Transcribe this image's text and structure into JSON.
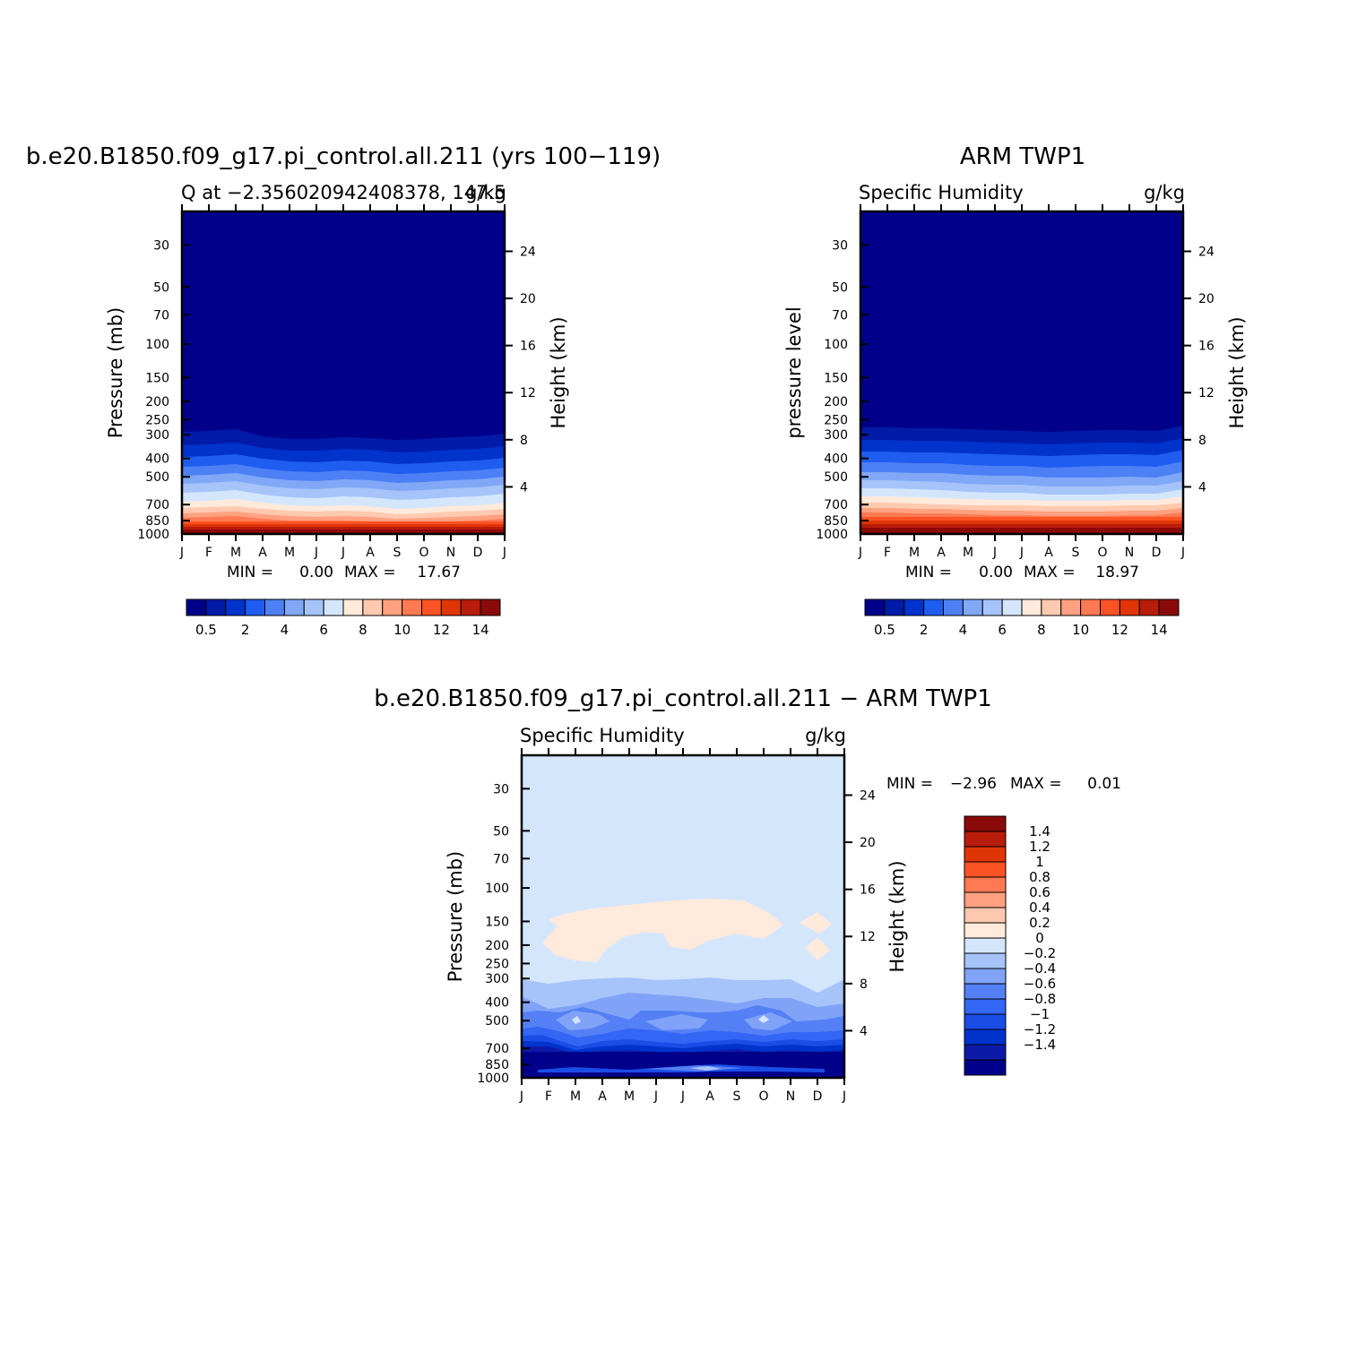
{
  "colors": {
    "model_obs_levels": [
      "#00008a",
      "#001ba8",
      "#0033cc",
      "#1f5cf0",
      "#4d80f5",
      "#80a8f7",
      "#a6c4fa",
      "#d4e6fc",
      "#ffeadb",
      "#ffc9b0",
      "#ffa180",
      "#ff7a52",
      "#fc5224",
      "#e03505",
      "#b81c0a",
      "#8a0a0a"
    ],
    "diff_levels": [
      "#00008a",
      "#0d1aa8",
      "#0033cc",
      "#1a4de6",
      "#3366f5",
      "#5580f5",
      "#80a3f7",
      "#a6c4fa",
      "#d4e6fc",
      "#ffeadb",
      "#ffc9b0",
      "#ffa180",
      "#ff7a52",
      "#fc5224",
      "#e03505",
      "#b81c0a",
      "#8a0a0a"
    ]
  },
  "months": [
    "J",
    "F",
    "M",
    "A",
    "M",
    "J",
    "J",
    "A",
    "S",
    "O",
    "N",
    "D",
    "J"
  ],
  "pressure_ticks": [
    "30",
    "50",
    "70",
    "100",
    "150",
    "200",
    "250",
    "300",
    "400",
    "500",
    "700",
    "850",
    "1000"
  ],
  "height_ticks": [
    "24",
    "20",
    "16",
    "12",
    "8",
    "4"
  ],
  "panels": {
    "model": {
      "title": "b.e20.B1850.f09_g17.pi_control.all.211 (yrs 100−119)",
      "left_string": "Q at −2.356020942408378, 147.5",
      "right_string": "g/kg",
      "y_label": "Pressure (mb)",
      "y2_label": "Height (km)",
      "min_label": "MIN =",
      "min_value": "0.00",
      "max_label": "MAX =",
      "max_value": "17.67"
    },
    "obs": {
      "title": "ARM TWP1",
      "left_string": "Specific Humidity",
      "right_string": "g/kg",
      "y_label": "pressure level",
      "y2_label": "Height (km)",
      "min_label": "MIN =",
      "min_value": "0.00",
      "max_label": "MAX =",
      "max_value": "18.97"
    },
    "diff": {
      "title": "b.e20.B1850.f09_g17.pi_control.all.211 − ARM TWP1",
      "left_string": "Specific Humidity",
      "right_string": "g/kg",
      "y_label": "Pressure (mb)",
      "y2_label": "Height (km)",
      "min_label": "MIN =",
      "min_value": "−2.96",
      "max_label": "MAX =",
      "max_value": "0.01"
    }
  },
  "colorbar_labels_abs": [
    "0.5",
    "2",
    "4",
    "6",
    "8",
    "10",
    "12",
    "14"
  ],
  "colorbar_labels_diff": [
    "1.4",
    "1.2",
    "1",
    "0.8",
    "0.6",
    "0.4",
    "0.2",
    "0",
    "−0.2",
    "−0.4",
    "−0.6",
    "−0.8",
    "−1",
    "−1.2",
    "−1.4"
  ],
  "chart_data": [
    {
      "type": "heatmap",
      "title": "b.e20.B1850.f09_g17.pi_control.all.211 (yrs 100−119)",
      "subtitle": "Q at −2.356020942408378, 147.5",
      "units": "g/kg",
      "xlabel": "",
      "ylabel": "Pressure (mb)",
      "y2label": "Height (km)",
      "x": [
        "J",
        "F",
        "M",
        "A",
        "M",
        "J",
        "J",
        "A",
        "S",
        "O",
        "N",
        "D",
        "J"
      ],
      "y": [
        1000,
        850,
        700,
        500,
        400,
        300,
        250,
        200,
        150,
        100,
        70,
        50,
        30
      ],
      "ylim": [
        1000,
        20
      ],
      "y_scale": "log",
      "levels": [
        0.5,
        1,
        2,
        3,
        4,
        5,
        6,
        7,
        8,
        9,
        10,
        11,
        12,
        13,
        14
      ],
      "values_by_level_approx": [
        17.5,
        11.5,
        7,
        3.5,
        2,
        0.8,
        0.5,
        0.5,
        0.4,
        0.4,
        0.4,
        0.4,
        0.4
      ],
      "min": 0.0,
      "max": 17.67
    },
    {
      "type": "heatmap",
      "title": "ARM TWP1",
      "subtitle": "Specific Humidity",
      "units": "g/kg",
      "xlabel": "",
      "ylabel": "pressure level",
      "y2label": "Height (km)",
      "x": [
        "J",
        "F",
        "M",
        "A",
        "M",
        "J",
        "J",
        "A",
        "S",
        "O",
        "N",
        "D",
        "J"
      ],
      "y": [
        1000,
        850,
        700,
        500,
        400,
        300,
        250,
        200,
        150,
        100,
        70,
        50,
        30
      ],
      "ylim": [
        1000,
        20
      ],
      "y_scale": "log",
      "levels": [
        0.5,
        1,
        2,
        3,
        4,
        5,
        6,
        7,
        8,
        9,
        10,
        11,
        12,
        13,
        14
      ],
      "values_by_level_approx": [
        18.5,
        13,
        8,
        4.5,
        2.5,
        0.9,
        0.5,
        0.5,
        0.4,
        0.4,
        0.4,
        0.4,
        0.4
      ],
      "min": 0.0,
      "max": 18.97
    },
    {
      "type": "heatmap",
      "title": "b.e20.B1850.f09_g17.pi_control.all.211 − ARM TWP1",
      "subtitle": "Specific Humidity",
      "units": "g/kg",
      "xlabel": "",
      "ylabel": "Pressure (mb)",
      "y2label": "Height (km)",
      "x": [
        "J",
        "F",
        "M",
        "A",
        "M",
        "J",
        "J",
        "A",
        "S",
        "O",
        "N",
        "D",
        "J"
      ],
      "y": [
        1000,
        850,
        700,
        500,
        400,
        300,
        250,
        200,
        150,
        100,
        70,
        50,
        30
      ],
      "ylim": [
        1000,
        20
      ],
      "y_scale": "log",
      "levels": [
        -1.4,
        -1.2,
        -1,
        -0.8,
        -0.6,
        -0.4,
        -0.2,
        0,
        0.2,
        0.4,
        0.6,
        0.8,
        1,
        1.2,
        1.4
      ],
      "values_by_level_approx": [
        -1.5,
        -1.5,
        -0.9,
        -0.5,
        -0.3,
        -0.1,
        -0.1,
        0.05,
        0.05,
        -0.05,
        -0.05,
        -0.05,
        -0.05
      ],
      "min": -2.96,
      "max": 0.01
    }
  ]
}
